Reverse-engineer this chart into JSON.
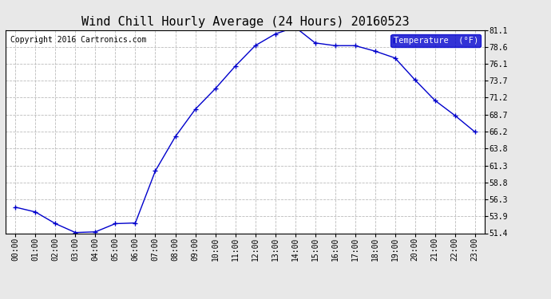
{
  "title": "Wind Chill Hourly Average (24 Hours) 20160523",
  "copyright": "Copyright 2016 Cartronics.com",
  "legend_label": "Temperature  (°F)",
  "hours": [
    "00:00",
    "01:00",
    "02:00",
    "03:00",
    "04:00",
    "05:00",
    "06:00",
    "07:00",
    "08:00",
    "09:00",
    "10:00",
    "11:00",
    "12:00",
    "13:00",
    "14:00",
    "15:00",
    "16:00",
    "17:00",
    "18:00",
    "19:00",
    "20:00",
    "21:00",
    "22:00",
    "23:00"
  ],
  "values": [
    55.2,
    54.5,
    52.8,
    51.5,
    51.6,
    52.8,
    52.9,
    60.5,
    65.5,
    69.5,
    72.5,
    75.8,
    78.8,
    80.5,
    81.5,
    79.2,
    78.8,
    78.8,
    78.0,
    77.0,
    73.8,
    70.8,
    68.6,
    66.2
  ],
  "ylim": [
    51.4,
    81.1
  ],
  "yticks": [
    51.4,
    53.9,
    56.3,
    58.8,
    61.3,
    63.8,
    66.2,
    68.7,
    71.2,
    73.7,
    76.1,
    78.6,
    81.1
  ],
  "line_color": "#0000cc",
  "marker": "+",
  "marker_size": 4,
  "marker_color": "#0000cc",
  "bg_color": "#e8e8e8",
  "plot_bg_color": "#ffffff",
  "grid_color": "#bbbbbb",
  "title_fontsize": 11,
  "tick_fontsize": 7,
  "copyright_fontsize": 7,
  "legend_bg": "#0000cc",
  "legend_fg": "#ffffff",
  "legend_fontsize": 7.5
}
